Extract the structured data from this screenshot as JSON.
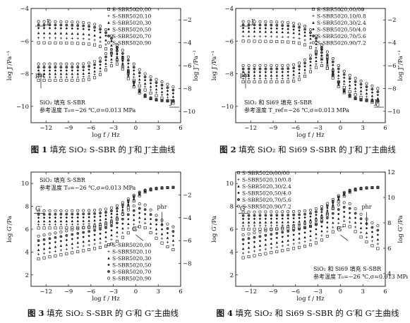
{
  "figures": [
    {
      "id": "fig1",
      "caption": {
        "num": "图 1",
        "text": "填充 SiO₂ S-SBR 的 J′和 J″主曲线"
      },
      "chart_data": {
        "type": "scatter",
        "xlabel": "log f / Hz",
        "ylabel_left": "log J′/Pa⁻¹",
        "ylabel_right": "log J″/Pa⁻¹",
        "xlim": [
          -14,
          6
        ],
        "ylim_left": [
          -11,
          -4
        ],
        "ylim_right": [
          -11,
          -1
        ],
        "xticks": [
          "-12",
          "-9",
          "-6",
          "-3",
          "0",
          "3",
          "6"
        ],
        "yticks_left": [
          "-10",
          "-8",
          "-6",
          "-4"
        ],
        "yticks_right": [
          "-10",
          "-8",
          "-6",
          "-4",
          "-2"
        ],
        "curve_labels": {
          "upper": "J′",
          "lower": "J″",
          "phr": "phr"
        },
        "annotations": [
          "SiO₂ 填充 S-SBR",
          "参考温度 T₀=−26 ℃,σ=0.013 MPa"
        ],
        "legend_position": "top-right",
        "series": [
          {
            "name": "S-SBR5020,00",
            "upper_plateau": -6.1,
            "lower_plateau": -8.4
          },
          {
            "name": "S-SBR5020,10",
            "upper_plateau": -5.8,
            "lower_plateau": -8.2
          },
          {
            "name": "S-SBR5020,30",
            "upper_plateau": -5.5,
            "lower_plateau": -8.0
          },
          {
            "name": "S-SBR5020,50",
            "upper_plateau": -5.2,
            "lower_plateau": -7.8
          },
          {
            "name": "S-SBR5020,70",
            "upper_plateau": -5.0,
            "lower_plateau": -7.6
          },
          {
            "name": "S-SBR5020,90",
            "upper_plateau": -4.8,
            "lower_plateau": -7.4
          }
        ]
      }
    },
    {
      "id": "fig2",
      "caption": {
        "num": "图 2",
        "text": "填充 SiO₂ 和 Si69 S-SBR 的 J′和 J″主曲线"
      },
      "chart_data": {
        "type": "scatter",
        "xlabel": "log f / Hz",
        "ylabel_left": "log J′/Pa⁻¹",
        "ylabel_right": "log J″/Pa⁻¹",
        "xlim": [
          -14,
          6
        ],
        "ylim_left": [
          -11,
          -4
        ],
        "ylim_right": [
          -11,
          -1
        ],
        "xticks": [
          "-12",
          "-9",
          "-6",
          "-3",
          "0",
          "3",
          "6"
        ],
        "yticks_left": [
          "-10",
          "-8",
          "-6",
          "-4"
        ],
        "yticks_right": [
          "-10",
          "-8",
          "-6",
          "-4",
          "-2"
        ],
        "curve_labels": {
          "upper": "J′",
          "lower": "J″",
          "phr": "phr"
        },
        "annotations": [
          "SiO₂ 和 Si69 填充 S-SBR",
          "参考温度 T_ref=−26 ℃,σ=0.013 MPa"
        ],
        "legend_position": "top-right",
        "series": [
          {
            "name": "S-SBR5020,00/00",
            "upper_plateau": -6.0,
            "lower_plateau": -8.5
          },
          {
            "name": "S-SBR5020,10/0.8",
            "upper_plateau": -5.7,
            "lower_plateau": -8.3
          },
          {
            "name": "S-SBR5020,30/2.4",
            "upper_plateau": -5.4,
            "lower_plateau": -8.1
          },
          {
            "name": "S-SBR5020,50/4.0",
            "upper_plateau": -5.2,
            "lower_plateau": -7.9
          },
          {
            "name": "S-SBR5020,70/5.6",
            "upper_plateau": -5.0,
            "lower_plateau": -7.7
          },
          {
            "name": "S-SBR5020,90/7.2",
            "upper_plateau": -4.8,
            "lower_plateau": -7.5
          }
        ]
      }
    },
    {
      "id": "fig3",
      "caption": {
        "num": "图 3",
        "text": "填充 SiO₂ S-SBR 的 G′和 G″主曲线"
      },
      "chart_data": {
        "type": "scatter",
        "xlabel": "log f / Hz",
        "ylabel_left": "log G′/Pa",
        "ylabel_right": "",
        "xlim": [
          -14,
          6
        ],
        "ylim_left": [
          1,
          11
        ],
        "ylim_right": [
          -10,
          0
        ],
        "xticks": [
          "-12",
          "-9",
          "-6",
          "-3",
          "0",
          "3",
          "6"
        ],
        "yticks_left": [
          "2",
          "4",
          "6",
          "8",
          "10"
        ],
        "yticks_right": [
          "-8",
          "-6",
          "-4",
          "-2"
        ],
        "curve_labels": {
          "upper": "G′",
          "lower": "G″",
          "phr": "phr"
        },
        "annotations": [
          "SiO₂ 填充 S-SBR",
          "参考温度 T₀=−26 ℃,σ=0.013 MPa"
        ],
        "legend_position": "bottom-right",
        "series": [
          {
            "name": "S-SBR5020,00",
            "upper_plateau": 6.1,
            "lower_plateau": 3.4
          },
          {
            "name": "S-SBR5020,10",
            "upper_plateau": 6.4,
            "lower_plateau": 3.8
          },
          {
            "name": "S-SBR5020,30",
            "upper_plateau": 6.7,
            "lower_plateau": 4.2
          },
          {
            "name": "S-SBR5020,50",
            "upper_plateau": 7.0,
            "lower_plateau": 4.6
          },
          {
            "name": "S-SBR5020,70",
            "upper_plateau": 7.3,
            "lower_plateau": 5.0
          },
          {
            "name": "S-SBR5020,90",
            "upper_plateau": 7.6,
            "lower_plateau": 5.4
          }
        ]
      }
    },
    {
      "id": "fig4",
      "caption": {
        "num": "图 4",
        "text": "填充 SiO₂ 和 Si69 S-SBR 的 G′和 G″主曲线"
      },
      "chart_data": {
        "type": "scatter",
        "xlabel": "log f / Hz",
        "ylabel_left": "log G′/Pa",
        "ylabel_right": "log G″/Pa",
        "xlim": [
          -14,
          6
        ],
        "ylim_left": [
          1,
          11
        ],
        "ylim_right": [
          3,
          12
        ],
        "xticks": [
          "-12",
          "-9",
          "-6",
          "-3",
          "0",
          "3",
          "6"
        ],
        "yticks_left": [
          "2",
          "4",
          "6",
          "8",
          "10"
        ],
        "yticks_right": [
          "4",
          "6",
          "8",
          "10",
          "12"
        ],
        "curve_labels": {
          "upper": "G′",
          "lower": "G″",
          "phr": "phr"
        },
        "annotations": [
          "SiO₂ 和 Si69 填充 S-SBR",
          "参考温度 T₀=−26 ℃,σ=0.013 MPa"
        ],
        "legend_position": "top-left",
        "series": [
          {
            "name": "S-SBR5020,00/00",
            "upper_plateau": 6.0,
            "lower_plateau": 3.5
          },
          {
            "name": "S-SBR5020,10/0.8",
            "upper_plateau": 6.3,
            "lower_plateau": 3.9
          },
          {
            "name": "S-SBR5020,30/2.4",
            "upper_plateau": 6.6,
            "lower_plateau": 4.3
          },
          {
            "name": "S-SBR5020,50/4.0",
            "upper_plateau": 6.9,
            "lower_plateau": 4.7
          },
          {
            "name": "S-SBR5020,70/5.6",
            "upper_plateau": 7.2,
            "lower_plateau": 5.1
          },
          {
            "name": "S-SBR5020,90/7.2",
            "upper_plateau": 7.5,
            "lower_plateau": 5.5
          }
        ]
      }
    }
  ],
  "markers": [
    "square",
    "plus",
    "triangle",
    "diamond",
    "circle-dot",
    "circle"
  ]
}
